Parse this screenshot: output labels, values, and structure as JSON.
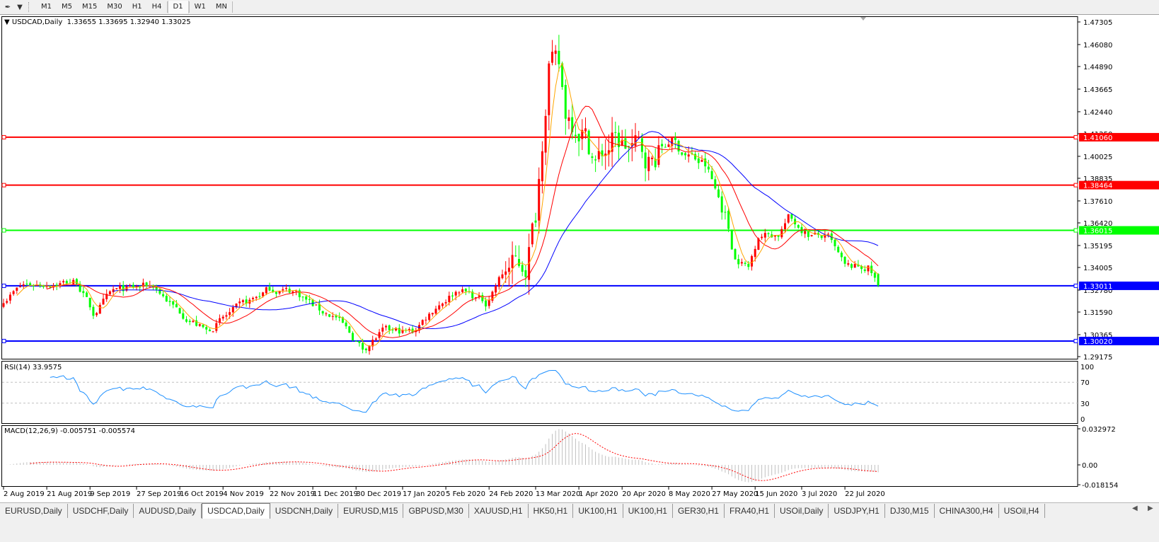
{
  "toolbar": {
    "tool_icon": "line-tool-icon",
    "timeframes": [
      "M1",
      "M5",
      "M15",
      "M30",
      "H1",
      "H4",
      "D1",
      "W1",
      "MN"
    ],
    "active_timeframe": "D1"
  },
  "chart": {
    "title": "USDCAD,Daily",
    "ohlc": "1.33655 1.33695 1.32940 1.33025",
    "price_axis": [
      "1.47305",
      "1.46080",
      "1.44890",
      "1.43665",
      "1.42440",
      "1.41250",
      "1.40025",
      "1.38835",
      "1.37610",
      "1.36420",
      "1.35195",
      "1.34005",
      "1.32780",
      "1.31590",
      "1.30365",
      "1.29175"
    ],
    "hlines": [
      {
        "price": "1.41060",
        "color": "#ff0000"
      },
      {
        "price": "1.38464",
        "color": "#ff0000"
      },
      {
        "price": "1.36015",
        "color": "#00ff00"
      },
      {
        "price": "1.33011",
        "color": "#0000ff"
      },
      {
        "price": "1.30020",
        "color": "#0000ff"
      }
    ],
    "colors": {
      "bull": "#ff0000",
      "bear": "#00ff00",
      "ma_fast": "#ffa500",
      "ma_mid": "#ff0000",
      "ma_slow": "#0000ff",
      "rsi": "#1e90ff",
      "macd_hist": "#c0c0c0",
      "macd_signal": "#ff0000"
    }
  },
  "rsi": {
    "label": "RSI(14) 33.9575",
    "axis": [
      "100",
      "70",
      "30",
      "0"
    ]
  },
  "macd": {
    "label": "MACD(12,26,9) -0.005751 -0.005574",
    "axis": [
      "0.032972",
      "0.00",
      "-0.018154"
    ]
  },
  "date_axis": [
    {
      "date": "2019-08-02",
      "label": "2 Aug 2019"
    },
    {
      "date": "2019-08-21",
      "label": "21 Aug 2019"
    },
    {
      "date": "2019-09-09",
      "label": "9 Sep 2019"
    },
    {
      "date": "2019-09-27",
      "label": "27 Sep 2019"
    },
    {
      "date": "2019-10-16",
      "label": "16 Oct 2019"
    },
    {
      "date": "2019-11-04",
      "label": "4 Nov 2019"
    },
    {
      "date": "2019-11-22",
      "label": "22 Nov 2019"
    },
    {
      "date": "2019-12-11",
      "label": "11 Dec 2019"
    },
    {
      "date": "2019-12-30",
      "label": "30 Dec 2019"
    },
    {
      "date": "2020-01-17",
      "label": "17 Jan 2020"
    },
    {
      "date": "2020-02-05",
      "label": "5 Feb 2020"
    },
    {
      "date": "2020-02-24",
      "label": "24 Feb 2020"
    },
    {
      "date": "2020-03-13",
      "label": "13 Mar 2020"
    },
    {
      "date": "2020-04-01",
      "label": "1 Apr 2020"
    },
    {
      "date": "2020-04-20",
      "label": "20 Apr 2020"
    },
    {
      "date": "2020-05-08",
      "label": "8 May 2020"
    },
    {
      "date": "2020-05-27",
      "label": "27 May 2020"
    },
    {
      "date": "2020-06-15",
      "label": "15 Jun 2020"
    },
    {
      "date": "2020-07-03",
      "label": "3 Jul 2020"
    },
    {
      "date": "2020-07-22",
      "label": "22 Jul 2020"
    }
  ],
  "tabs": [
    "EURUSD,Daily",
    "USDCHF,Daily",
    "AUDUSD,Daily",
    "USDCAD,Daily",
    "USDCNH,Daily",
    "EURUSD,M15",
    "GBPUSD,M30",
    "XAUUSD,H1",
    "HK50,H1",
    "UK100,H1",
    "UK100,H1",
    "GER30,H1",
    "FRA40,H1",
    "USOil,Daily",
    "USDJPY,H1",
    "DJ30,M15",
    "CHINA300,H4",
    "USOil,H4"
  ],
  "active_tab": "USDCAD,Daily",
  "chart_data": {
    "type": "candlestick",
    "symbol": "USDCAD",
    "timeframe": "Daily",
    "ylim": [
      1.29175,
      1.47305
    ],
    "last_bar": {
      "open": 1.33655,
      "high": 1.33695,
      "low": 1.3294,
      "close": 1.33025
    },
    "approx_close_path": [
      [
        "2019-08-02",
        1.3228
      ],
      [
        "2019-08-12",
        1.3306
      ],
      [
        "2019-09-03",
        1.3325
      ],
      [
        "2019-09-10",
        1.315
      ],
      [
        "2019-09-18",
        1.327
      ],
      [
        "2019-10-04",
        1.3306
      ],
      [
        "2019-10-14",
        1.3189
      ],
      [
        "2019-10-28",
        1.3053
      ],
      [
        "2019-11-06",
        1.315
      ],
      [
        "2019-11-22",
        1.3286
      ],
      [
        "2019-12-04",
        1.327
      ],
      [
        "2019-12-13",
        1.317
      ],
      [
        "2019-12-20",
        1.313
      ],
      [
        "2020-01-01",
        1.2957
      ],
      [
        "2020-01-09",
        1.3053
      ],
      [
        "2020-01-22",
        1.3053
      ],
      [
        "2020-01-31",
        1.319
      ],
      [
        "2020-02-11",
        1.3286
      ],
      [
        "2020-02-21",
        1.321
      ],
      [
        "2020-03-02",
        1.34
      ],
      [
        "2020-03-10",
        1.342
      ],
      [
        "2020-03-13",
        1.369
      ],
      [
        "2020-03-19",
        1.453
      ],
      [
        "2020-03-24",
        1.447
      ],
      [
        "2020-03-26",
        1.424
      ],
      [
        "2020-04-02",
        1.416
      ],
      [
        "2020-04-08",
        1.397
      ],
      [
        "2020-04-15",
        1.408
      ],
      [
        "2020-04-27",
        1.404
      ],
      [
        "2020-05-01",
        1.397
      ],
      [
        "2020-05-08",
        1.41
      ],
      [
        "2020-05-15",
        1.402
      ],
      [
        "2020-05-25",
        1.395
      ],
      [
        "2020-06-02",
        1.369
      ],
      [
        "2020-06-05",
        1.346
      ],
      [
        "2020-06-11",
        1.34
      ],
      [
        "2020-06-16",
        1.358
      ],
      [
        "2020-06-24",
        1.358
      ],
      [
        "2020-06-29",
        1.367
      ],
      [
        "2020-07-07",
        1.358
      ],
      [
        "2020-07-15",
        1.356
      ],
      [
        "2020-07-22",
        1.34
      ],
      [
        "2020-07-31",
        1.34
      ],
      [
        "2020-08-05",
        1.33025
      ]
    ],
    "rsi_levels": [
      30,
      70
    ],
    "rsi_ylim": [
      0,
      100
    ],
    "macd_ylim": [
      -0.018154,
      0.032972
    ]
  }
}
